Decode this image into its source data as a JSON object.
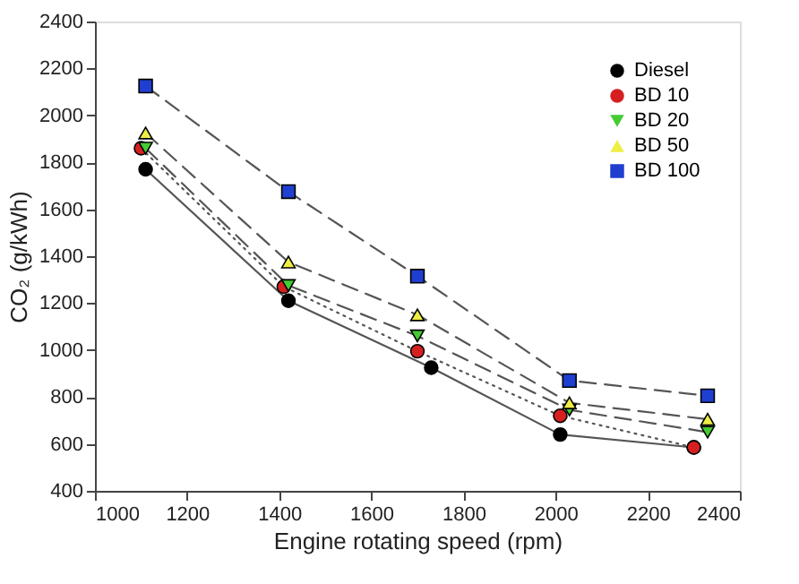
{
  "chart_data": {
    "type": "line",
    "xlabel": "Engine rotating speed (rpm)",
    "ylabel": "CO₂ (g/kWh)",
    "xlim": [
      1000,
      2400
    ],
    "xticks": [
      1000,
      1200,
      1400,
      1600,
      1800,
      2000,
      2200,
      2400
    ],
    "ylim": [
      400,
      2400
    ],
    "yticks": [
      400,
      600,
      800,
      1000,
      1200,
      1400,
      1600,
      1800,
      2000,
      2200,
      2400
    ],
    "grid": false,
    "legend": "top right",
    "series": [
      {
        "name": "Diesel",
        "color": "#000000",
        "marker": "circle",
        "line_style": "solid",
        "x": [
          1110,
          1420,
          1730,
          2010,
          2300
        ],
        "values": [
          1770,
          1210,
          925,
          640,
          585
        ]
      },
      {
        "name": "BD 10",
        "color": "#d62020",
        "marker": "circle",
        "line_style": "dotted",
        "x": [
          1100,
          1410,
          1700,
          2010,
          2300
        ],
        "values": [
          1860,
          1270,
          995,
          720,
          585
        ]
      },
      {
        "name": "BD 20",
        "color": "#44cc33",
        "marker": "triangle-down",
        "line_style": "dashed",
        "x": [
          1110,
          1420,
          1700,
          2030,
          2330
        ],
        "values": [
          1860,
          1275,
          1060,
          745,
          650
        ]
      },
      {
        "name": "BD 50",
        "color": "#eeee44",
        "marker": "triangle",
        "line_style": "dashed",
        "x": [
          1110,
          1420,
          1700,
          2030,
          2330
        ],
        "values": [
          1925,
          1375,
          1150,
          775,
          705
        ]
      },
      {
        "name": "BD 100",
        "color": "#1f3fd0",
        "marker": "square",
        "line_style": "dashed",
        "x": [
          1110,
          1420,
          1700,
          2030,
          2330
        ],
        "values": [
          2125,
          1675,
          1315,
          870,
          805
        ]
      }
    ]
  }
}
